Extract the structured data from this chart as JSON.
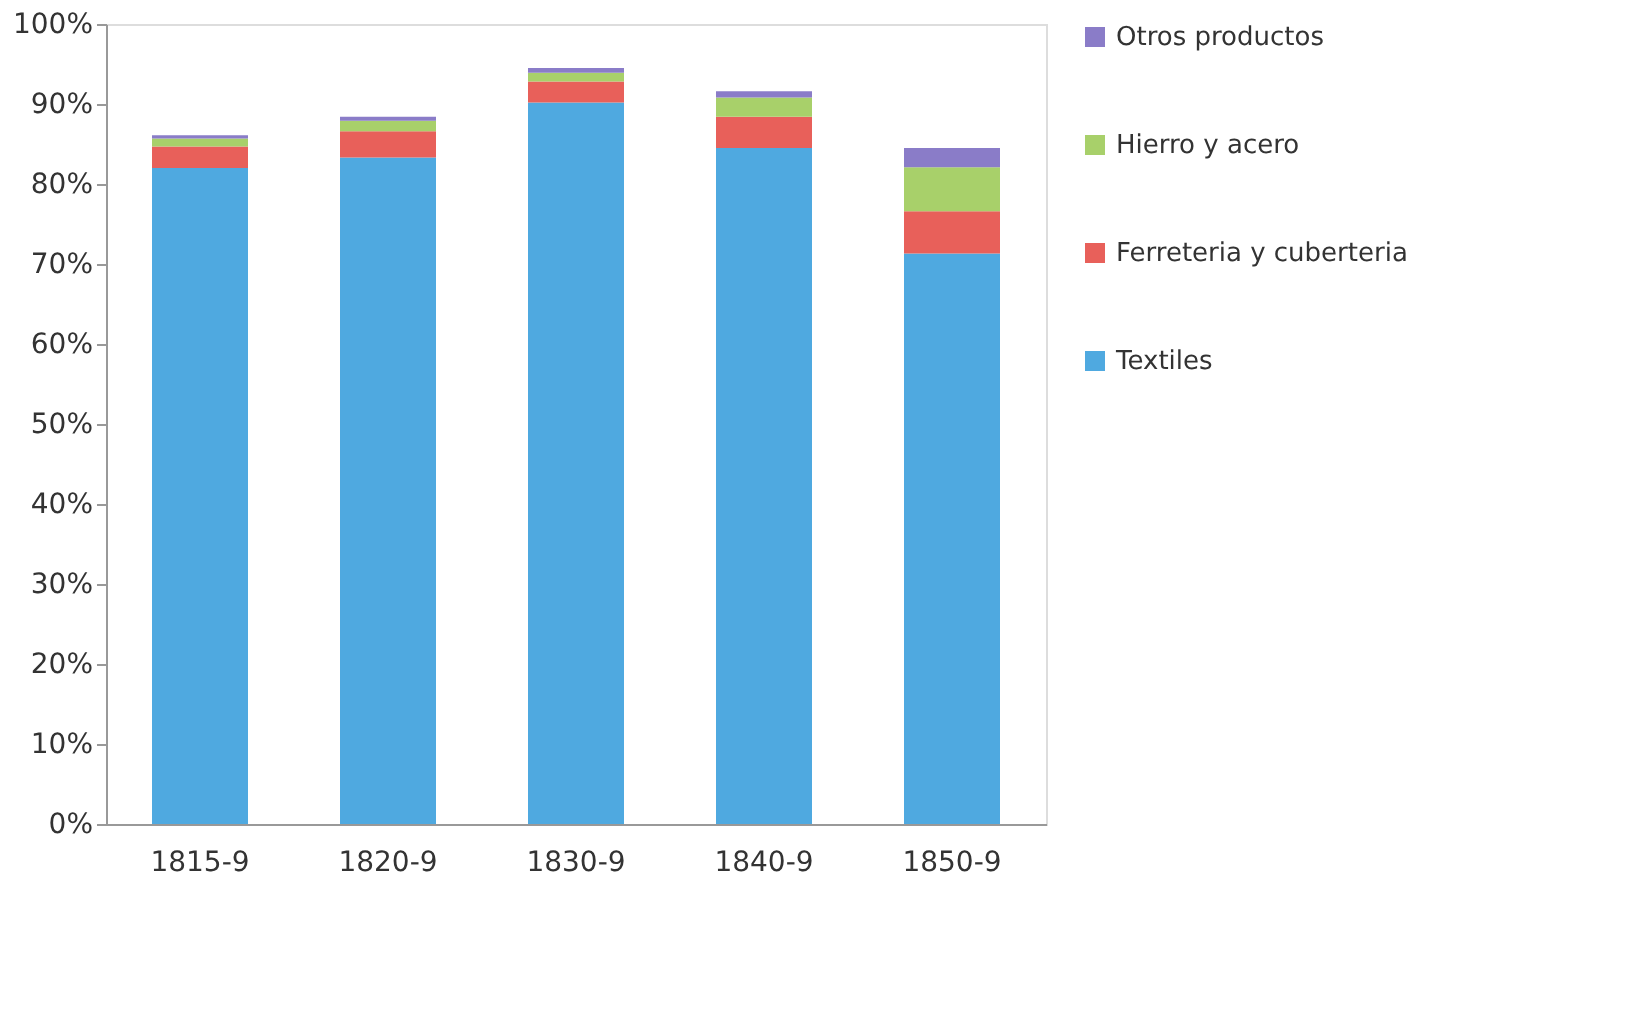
{
  "chart_data": {
    "type": "bar",
    "stacked": true,
    "categories": [
      "1815-9",
      "1820-9",
      "1830-9",
      "1840-9",
      "1850-9"
    ],
    "series": [
      {
        "name": "Textiles",
        "color": "#4fa9e0",
        "values": [
          82.0,
          83.3,
          90.2,
          84.5,
          71.3
        ]
      },
      {
        "name": "Ferreteria y cuberteria",
        "color": "#e8605a",
        "values": [
          2.7,
          3.3,
          2.6,
          3.9,
          5.3
        ]
      },
      {
        "name": "Hierro y acero",
        "color": "#a8d06a",
        "values": [
          1.0,
          1.3,
          1.1,
          2.4,
          5.5
        ]
      },
      {
        "name": "Otros productos",
        "color": "#8a7cc8",
        "values": [
          0.4,
          0.5,
          0.6,
          0.8,
          2.4
        ]
      }
    ],
    "ylim": [
      0,
      100
    ],
    "yticks": [
      {
        "value": 0,
        "label": "0%"
      },
      {
        "value": 10,
        "label": "10%"
      },
      {
        "value": 20,
        "label": "20%"
      },
      {
        "value": 30,
        "label": "30%"
      },
      {
        "value": 40,
        "label": "40%"
      },
      {
        "value": 50,
        "label": "50%"
      },
      {
        "value": 60,
        "label": "60%"
      },
      {
        "value": 70,
        "label": "70%"
      },
      {
        "value": 80,
        "label": "80%"
      },
      {
        "value": 90,
        "label": "90%"
      },
      {
        "value": 100,
        "label": "100%"
      }
    ],
    "grid": false,
    "legend": "right"
  }
}
